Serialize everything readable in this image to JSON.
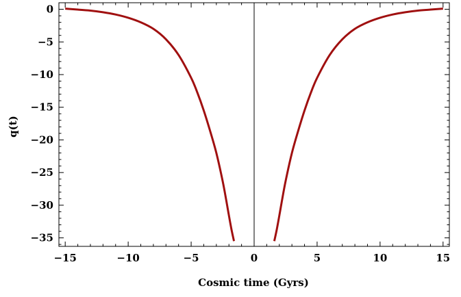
{
  "chart_data": {
    "type": "line",
    "title": "",
    "xlabel": "Cosmic time (Gyrs)",
    "ylabel": "q(t)",
    "xlim": [
      -15.5,
      15.5
    ],
    "ylim": [
      -36.3,
      1.0
    ],
    "x_ticks": [
      -15,
      -10,
      -5,
      0,
      5,
      10,
      15
    ],
    "x_tick_labels": [
      "−15",
      "−10",
      "−5",
      "0",
      "5",
      "10",
      "15"
    ],
    "y_ticks": [
      0,
      -5,
      -10,
      -15,
      -20,
      -25,
      -30,
      -35
    ],
    "y_tick_labels": [
      "0",
      "−5",
      "−10",
      "−15",
      "−20",
      "−25",
      "−30",
      "−35"
    ],
    "grid": false,
    "vertical_reference_line_x": 0,
    "line_color": "#a01010",
    "series": [
      {
        "x": [
          -15,
          -14,
          -13,
          -12,
          -11,
          -10,
          -9,
          -8,
          -7,
          -6,
          -5,
          -4.5,
          -4,
          -3.5,
          -3,
          -2.5,
          -2.2,
          -2,
          -1.8,
          -1.6
        ],
        "y": [
          0.1,
          -0.05,
          -0.2,
          -0.45,
          -0.8,
          -1.3,
          -2.0,
          -3.0,
          -4.6,
          -7.0,
          -10.5,
          -12.8,
          -15.5,
          -18.6,
          -22.0,
          -26.3,
          -29.4,
          -31.6,
          -33.7,
          -35.5
        ]
      },
      {
        "x": [
          1.6,
          1.8,
          2,
          2.2,
          2.5,
          3,
          3.5,
          4,
          4.5,
          5,
          6,
          7,
          8,
          9,
          10,
          11,
          12,
          13,
          14,
          15
        ],
        "y": [
          -35.5,
          -33.7,
          -31.6,
          -29.4,
          -26.3,
          -22.0,
          -18.6,
          -15.5,
          -12.8,
          -10.5,
          -7.0,
          -4.6,
          -3.0,
          -2.0,
          -1.3,
          -0.8,
          -0.45,
          -0.2,
          -0.05,
          0.1
        ]
      }
    ]
  }
}
